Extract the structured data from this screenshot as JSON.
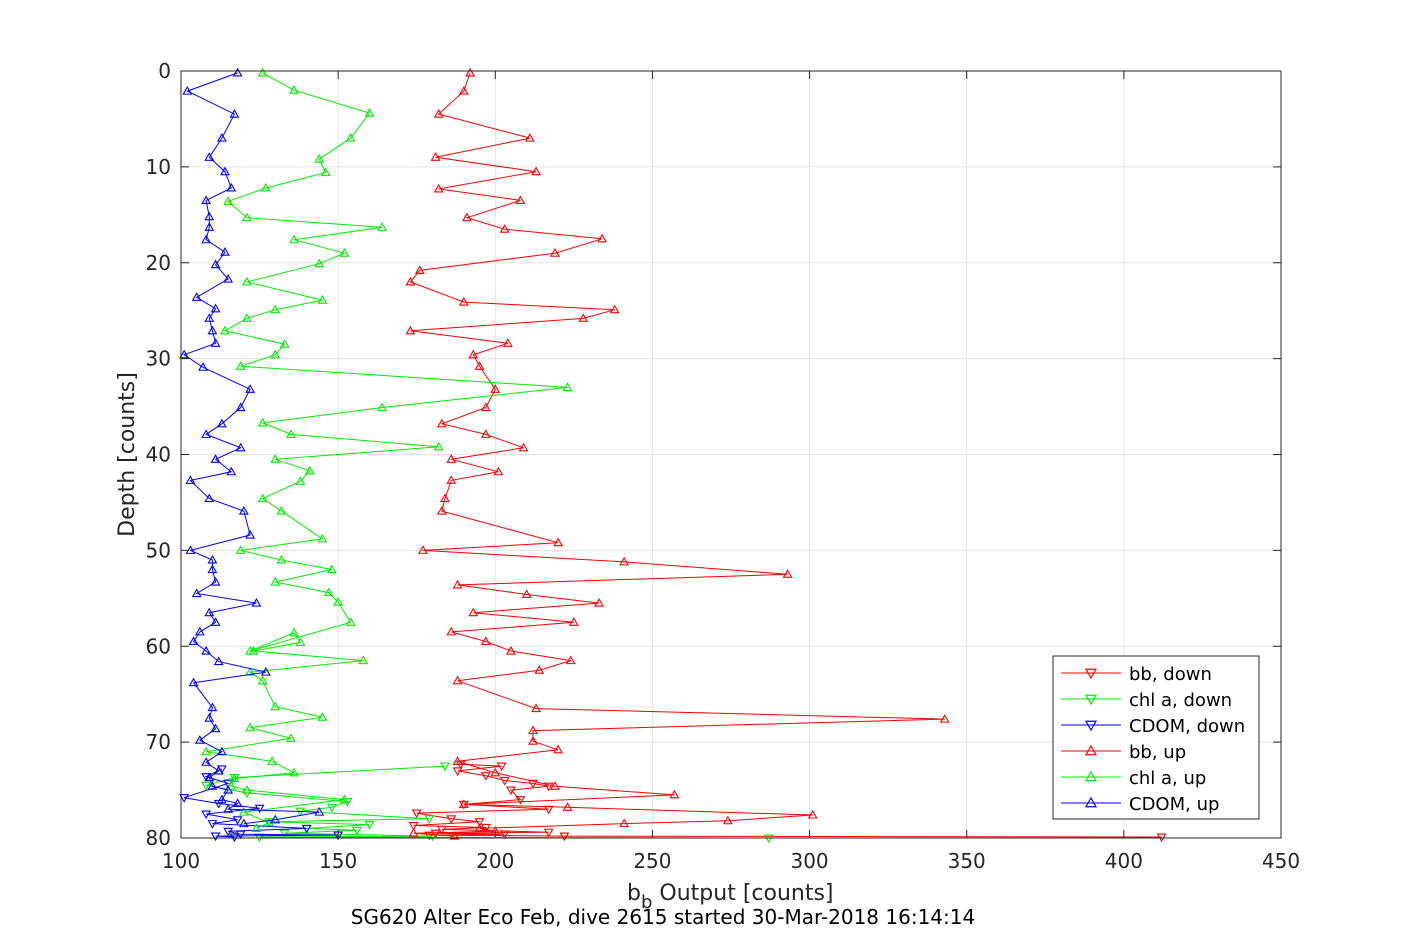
{
  "chart_data": {
    "type": "scatter",
    "title": "",
    "xlabel_base": "b",
    "xlabel_sub": "b",
    "xlabel_rest": " Output [counts]",
    "ylabel": "Depth [counts]",
    "caption": "SG620 Alter Eco Feb, dive 2615 started 30-Mar-2018 16:14:14",
    "xlim": [
      100,
      450
    ],
    "ylim": [
      0,
      80
    ],
    "y_reversed": true,
    "grid": true,
    "x_ticks": [
      100,
      150,
      200,
      250,
      300,
      350,
      400,
      450
    ],
    "y_ticks": [
      0,
      10,
      20,
      30,
      40,
      50,
      60,
      70,
      80
    ],
    "legend_position": "bottom-right",
    "series": [
      {
        "name": "bb, down",
        "color": "#ff0000",
        "marker": "triangle-down",
        "x": [
          189,
          202,
          188,
          197,
          203,
          212,
          217,
          205,
          208,
          190,
          217,
          175,
          186,
          195,
          174,
          197,
          183,
          217,
          181,
          203,
          179,
          222,
          412
        ],
        "y": [
          72.3,
          72.5,
          73.0,
          73.5,
          74.0,
          74.3,
          74.6,
          75.0,
          76.0,
          76.5,
          77.0,
          77.4,
          78.0,
          78.3,
          78.7,
          78.9,
          79.1,
          79.4,
          79.5,
          79.6,
          79.7,
          79.8,
          79.9
        ]
      },
      {
        "name": "chl a, down",
        "color": "#00ee00",
        "marker": "triangle-down",
        "x": [
          184,
          117,
          108,
          121,
          153,
          148,
          138,
          179,
          128,
          160,
          140,
          156,
          133,
          180,
          125,
          287
        ],
        "y": [
          72.5,
          73.7,
          74.5,
          75.3,
          76.2,
          76.8,
          77.2,
          78.0,
          78.3,
          78.6,
          79.0,
          79.2,
          79.5,
          79.8,
          79.9,
          80.0
        ]
      },
      {
        "name": "CDOM, down",
        "color": "#0000ff",
        "marker": "triangle-down",
        "x": [
          113,
          108,
          115,
          101,
          112,
          125,
          108,
          118,
          110,
          140,
          115,
          119,
          150,
          111,
          117
        ],
        "y": [
          72.8,
          73.6,
          74.3,
          75.8,
          76.4,
          76.9,
          77.5,
          78.1,
          78.5,
          79.0,
          79.3,
          79.6,
          79.7,
          79.8,
          79.9
        ]
      },
      {
        "name": "bb, up",
        "color": "#ff0000",
        "marker": "triangle-up",
        "x": [
          192,
          190,
          182,
          211,
          181,
          213,
          182,
          208,
          191,
          203,
          234,
          219,
          176,
          173,
          190,
          238,
          228,
          173,
          204,
          193,
          195,
          200,
          197,
          183,
          197,
          209,
          186,
          201,
          186,
          184,
          183,
          220,
          177,
          241,
          293,
          188,
          210,
          233,
          193,
          225,
          186,
          197,
          205,
          224,
          214,
          188,
          213,
          343,
          212,
          212,
          220,
          188,
          200,
          219,
          257,
          190,
          223,
          301,
          274,
          241,
          195,
          200,
          174,
          187
        ],
        "y": [
          0.2,
          2.1,
          4.5,
          7.0,
          9.0,
          10.5,
          12.3,
          13.5,
          15.3,
          16.5,
          17.5,
          19.0,
          20.8,
          22.0,
          24.1,
          24.9,
          25.8,
          27.1,
          28.4,
          29.6,
          30.8,
          33.2,
          35.1,
          36.8,
          37.9,
          39.3,
          40.5,
          41.8,
          42.7,
          44.6,
          45.9,
          49.2,
          50.0,
          51.2,
          52.5,
          53.6,
          54.6,
          55.5,
          56.5,
          57.5,
          58.5,
          59.5,
          60.5,
          61.5,
          62.5,
          63.6,
          66.5,
          67.6,
          68.8,
          69.9,
          70.8,
          72.0,
          73.2,
          74.6,
          75.5,
          76.5,
          76.8,
          77.6,
          78.2,
          78.5,
          79.0,
          79.3,
          79.5,
          79.8
        ]
      },
      {
        "name": "chl a, up",
        "color": "#00ee00",
        "marker": "triangle-up",
        "x": [
          126,
          136,
          160,
          154,
          144,
          146,
          127,
          115,
          121,
          164,
          136,
          152,
          144,
          121,
          145,
          130,
          121,
          114,
          133,
          130,
          119,
          223,
          164,
          126,
          135,
          182,
          130,
          141,
          138,
          126,
          132,
          145,
          119,
          132,
          148,
          130,
          147,
          150,
          154,
          122,
          136,
          138,
          123,
          158,
          122,
          126,
          130,
          145,
          122,
          135,
          108,
          129,
          136,
          117,
          116,
          121,
          152,
          120,
          128,
          124
        ],
        "y": [
          0.2,
          2.0,
          4.4,
          7.0,
          9.2,
          10.6,
          12.2,
          13.6,
          15.3,
          16.3,
          17.6,
          19.0,
          20.1,
          22.0,
          23.9,
          24.9,
          25.8,
          27.1,
          28.5,
          29.6,
          30.8,
          33.0,
          35.1,
          36.7,
          37.9,
          39.2,
          40.5,
          41.7,
          42.8,
          44.6,
          45.9,
          48.8,
          50.0,
          51.0,
          52.0,
          53.3,
          54.4,
          55.4,
          57.5,
          60.5,
          58.6,
          59.6,
          60.5,
          61.5,
          62.7,
          63.6,
          66.3,
          67.4,
          68.5,
          69.6,
          71.0,
          72.0,
          73.2,
          73.8,
          74.6,
          75.0,
          76.0,
          77.3,
          78.4,
          79.0
        ]
      },
      {
        "name": "CDOM, up",
        "color": "#0000ff",
        "marker": "triangle-up",
        "x": [
          118,
          102,
          117,
          113,
          109,
          114,
          116,
          108,
          109,
          109,
          108,
          114,
          111,
          115,
          105,
          111,
          109,
          110,
          111,
          101,
          107,
          122,
          119,
          113,
          108,
          119,
          111,
          116,
          103,
          109,
          120,
          122,
          103,
          110,
          110,
          111,
          105,
          124,
          109,
          111,
          106,
          104,
          108,
          112,
          127,
          104,
          110,
          109,
          111,
          106,
          113,
          108,
          112,
          109,
          110,
          115,
          113,
          118,
          115,
          144,
          130,
          120
        ],
        "y": [
          0.2,
          2.1,
          4.5,
          7.0,
          9.0,
          10.5,
          12.2,
          13.5,
          15.2,
          16.3,
          17.6,
          18.9,
          20.2,
          21.7,
          23.6,
          24.8,
          25.8,
          27.1,
          28.4,
          29.6,
          30.9,
          33.2,
          35.1,
          36.8,
          37.9,
          39.3,
          40.5,
          41.8,
          42.7,
          44.6,
          45.9,
          48.4,
          50.0,
          51.0,
          52.0,
          53.3,
          54.5,
          55.5,
          56.5,
          57.5,
          58.5,
          59.5,
          60.5,
          61.6,
          62.7,
          63.8,
          66.4,
          67.5,
          68.6,
          69.8,
          71.0,
          72.1,
          73.0,
          73.7,
          74.6,
          75.0,
          76.0,
          76.4,
          77.0,
          77.3,
          78.1,
          78.5
        ]
      }
    ]
  }
}
